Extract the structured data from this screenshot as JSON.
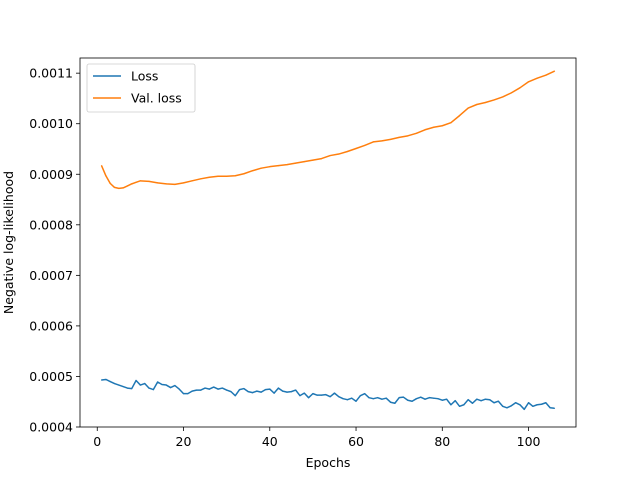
{
  "chart_data": {
    "type": "line",
    "title": "",
    "xlabel": "Epochs",
    "ylabel": "Negative log-likelihood",
    "xlim": [
      -4,
      111
    ],
    "ylim": [
      0.0004,
      0.00113
    ],
    "xticks": [
      0,
      20,
      40,
      60,
      80,
      100
    ],
    "xtick_labels": [
      "0",
      "20",
      "40",
      "60",
      "80",
      "100"
    ],
    "yticks": [
      0.0004,
      0.0005,
      0.0006,
      0.0007,
      0.0008,
      0.0009,
      0.001,
      0.0011
    ],
    "ytick_labels": [
      "0.0004",
      "0.0005",
      "0.0006",
      "0.0007",
      "0.0008",
      "0.0009",
      "0.0010",
      "0.0011"
    ],
    "grid": false,
    "legend_position": "top-left",
    "series": [
      {
        "name": "Loss",
        "color": "#1f77b4",
        "x": [
          1,
          2,
          3,
          4,
          5,
          6,
          7,
          8,
          9,
          10,
          11,
          12,
          13,
          14,
          15,
          16,
          17,
          18,
          19,
          20,
          21,
          22,
          23,
          24,
          25,
          26,
          27,
          28,
          29,
          30,
          31,
          32,
          33,
          34,
          35,
          36,
          37,
          38,
          39,
          40,
          41,
          42,
          43,
          44,
          45,
          46,
          47,
          48,
          49,
          50,
          51,
          52,
          53,
          54,
          55,
          56,
          57,
          58,
          59,
          60,
          61,
          62,
          63,
          64,
          65,
          66,
          67,
          68,
          69,
          70,
          71,
          72,
          73,
          74,
          75,
          76,
          77,
          78,
          79,
          80,
          81,
          82,
          83,
          84,
          85,
          86,
          87,
          88,
          89,
          90,
          91,
          92,
          93,
          94,
          95,
          96,
          97,
          98,
          99,
          100,
          101,
          102,
          103,
          104,
          105,
          106
        ],
        "values": [
          0.000493,
          0.000494,
          0.00049,
          0.000486,
          0.000483,
          0.00048,
          0.000477,
          0.000476,
          0.000492,
          0.000483,
          0.000486,
          0.000477,
          0.000474,
          0.000489,
          0.000484,
          0.000483,
          0.000478,
          0.000482,
          0.000475,
          0.000466,
          0.000466,
          0.000471,
          0.000473,
          0.000473,
          0.000477,
          0.000475,
          0.000479,
          0.000475,
          0.000477,
          0.000473,
          0.00047,
          0.000462,
          0.000474,
          0.000476,
          0.00047,
          0.000468,
          0.000471,
          0.000469,
          0.000474,
          0.000475,
          0.000467,
          0.000477,
          0.000471,
          0.000469,
          0.00047,
          0.000473,
          0.000462,
          0.000467,
          0.000458,
          0.000466,
          0.000463,
          0.000463,
          0.000464,
          0.00046,
          0.000467,
          0.00046,
          0.000456,
          0.000454,
          0.000457,
          0.000451,
          0.000462,
          0.000466,
          0.000458,
          0.000456,
          0.000458,
          0.000455,
          0.000457,
          0.000449,
          0.000447,
          0.000458,
          0.000459,
          0.000453,
          0.000451,
          0.000456,
          0.000459,
          0.000455,
          0.000458,
          0.000457,
          0.000456,
          0.000453,
          0.000455,
          0.000444,
          0.000452,
          0.000441,
          0.000444,
          0.000454,
          0.000447,
          0.000455,
          0.000452,
          0.000455,
          0.000454,
          0.000448,
          0.000451,
          0.000441,
          0.000438,
          0.000442,
          0.000448,
          0.000444,
          0.000435,
          0.000448,
          0.000441,
          0.000444,
          0.000445,
          0.000448,
          0.000438,
          0.000437
        ]
      },
      {
        "name": "Val. loss",
        "color": "#ff7f0e",
        "x": [
          1,
          2,
          3,
          4,
          5,
          6,
          7,
          8,
          9,
          10,
          12,
          14,
          16,
          18,
          20,
          22,
          24,
          26,
          28,
          30,
          32,
          34,
          36,
          38,
          40,
          42,
          44,
          46,
          48,
          50,
          52,
          54,
          56,
          58,
          60,
          62,
          64,
          66,
          68,
          70,
          72,
          74,
          76,
          78,
          80,
          82,
          84,
          86,
          88,
          90,
          92,
          94,
          96,
          98,
          100,
          102,
          104,
          106
        ],
        "values": [
          0.000917,
          0.000897,
          0.000882,
          0.000874,
          0.000872,
          0.000873,
          0.000877,
          0.000881,
          0.000884,
          0.000887,
          0.000886,
          0.000883,
          0.000881,
          0.00088,
          0.000883,
          0.000887,
          0.000891,
          0.000894,
          0.000896,
          0.000896,
          0.000897,
          0.000901,
          0.000907,
          0.000912,
          0.000915,
          0.000917,
          0.000919,
          0.000922,
          0.000925,
          0.000928,
          0.000931,
          0.000937,
          0.00094,
          0.000945,
          0.000951,
          0.000957,
          0.000964,
          0.000966,
          0.000969,
          0.000973,
          0.000976,
          0.000981,
          0.000988,
          0.000993,
          0.000996,
          0.001002,
          0.001016,
          0.001031,
          0.001038,
          0.001042,
          0.001047,
          0.001053,
          0.001061,
          0.001071,
          0.001083,
          0.00109,
          0.001096,
          0.001104
        ]
      }
    ]
  }
}
